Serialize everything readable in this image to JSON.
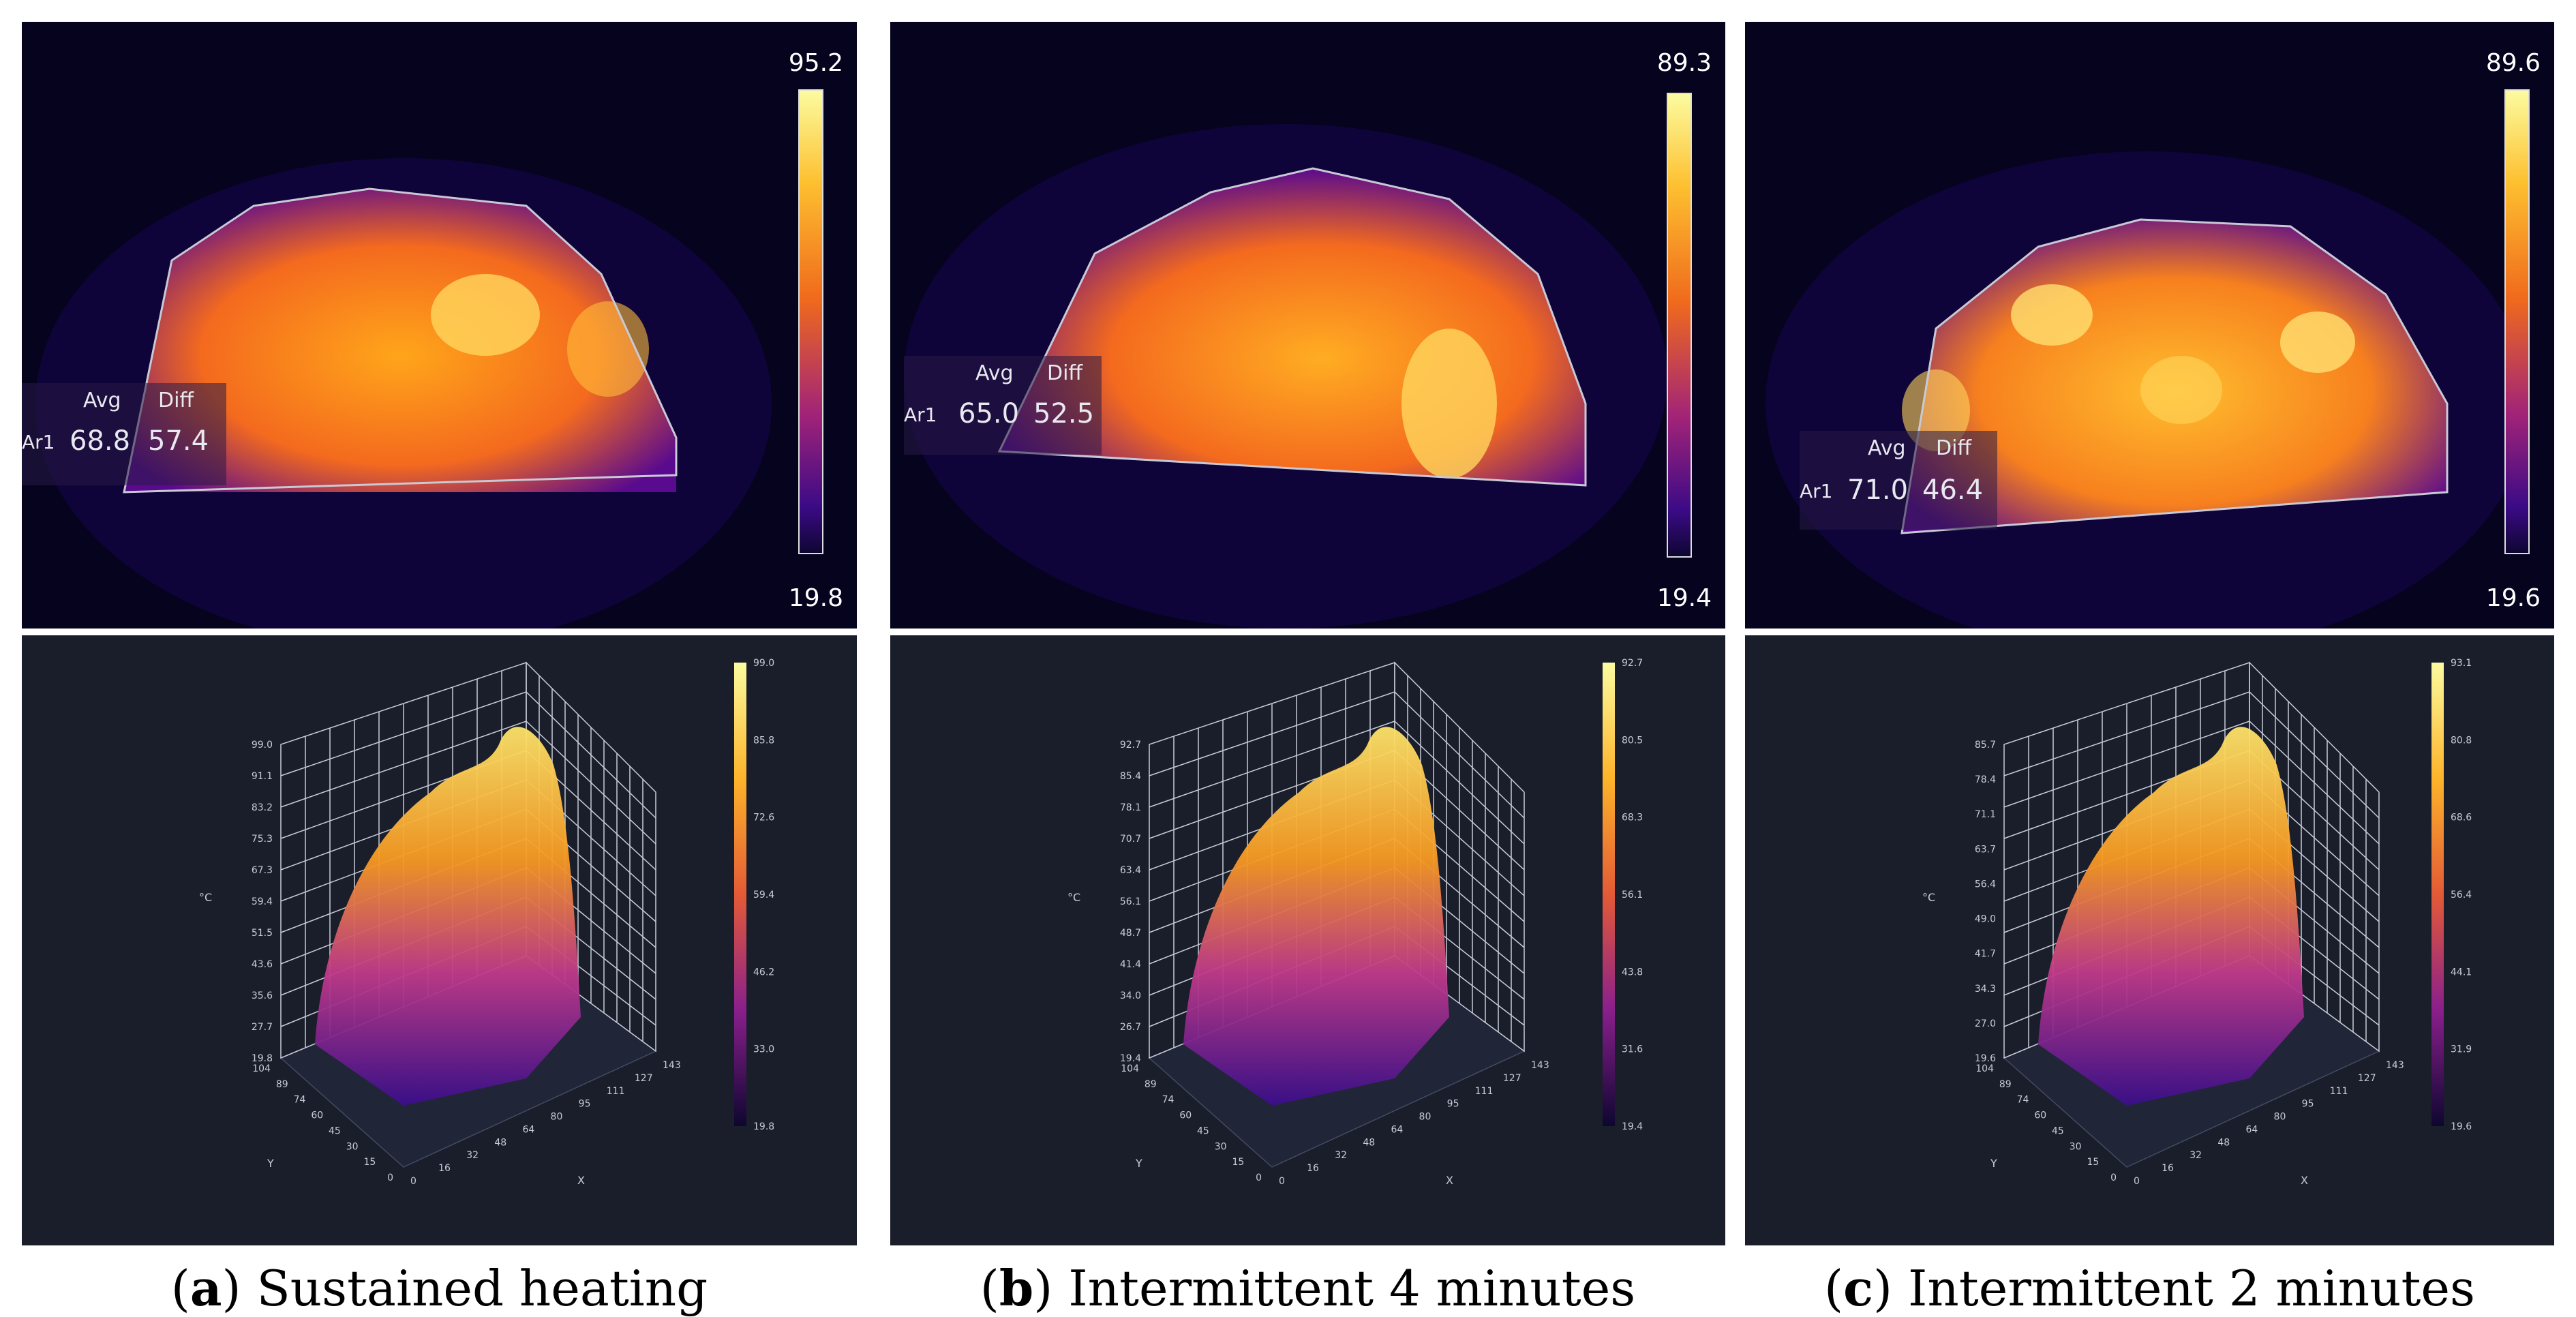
{
  "panels": [
    {
      "id": "a",
      "thermal": {
        "scale_max": "95.2",
        "scale_min": "19.8",
        "roi": "Ar1",
        "avg_label": "Avg",
        "diff_label": "Diff",
        "avg": "68.8",
        "diff": "57.4"
      },
      "plot": {
        "z_ticks": [
          "99.0",
          "91.1",
          "83.2",
          "75.3",
          "67.3",
          "59.4",
          "51.5",
          "43.6",
          "35.6",
          "27.7",
          "19.8"
        ],
        "cbar_ticks": [
          "99.0",
          "85.8",
          "72.6",
          "59.4",
          "46.2",
          "33.0",
          "19.8"
        ]
      },
      "caption_letter": "a",
      "caption_text": ") Sustained heating"
    },
    {
      "id": "b",
      "thermal": {
        "scale_max": "89.3",
        "scale_min": "19.4",
        "roi": "Ar1",
        "avg_label": "Avg",
        "diff_label": "Diff",
        "avg": "65.0",
        "diff": "52.5"
      },
      "plot": {
        "z_ticks": [
          "92.7",
          "85.4",
          "78.1",
          "70.7",
          "63.4",
          "56.1",
          "48.7",
          "41.4",
          "34.0",
          "26.7",
          "19.4"
        ],
        "cbar_ticks": [
          "92.7",
          "80.5",
          "68.3",
          "56.1",
          "43.8",
          "31.6",
          "19.4"
        ]
      },
      "caption_letter": "b",
      "caption_text": ") Intermittent 4 minutes"
    },
    {
      "id": "c",
      "thermal": {
        "scale_max": "89.6",
        "scale_min": "19.6",
        "roi": "Ar1",
        "avg_label": "Avg",
        "diff_label": "Diff",
        "avg": "71.0",
        "diff": "46.4"
      },
      "plot": {
        "z_ticks": [
          "85.7",
          "78.4",
          "71.1",
          "63.7",
          "56.4",
          "49.0",
          "41.7",
          "34.3",
          "27.0",
          "19.6"
        ],
        "cbar_ticks": [
          "93.1",
          "80.8",
          "68.6",
          "56.4",
          "44.1",
          "31.9",
          "19.6"
        ]
      },
      "caption_letter": "c",
      "caption_text": ") Intermittent 2 minutes"
    }
  ],
  "axes": {
    "x_ticks": [
      "0",
      "16",
      "32",
      "48",
      "64",
      "80",
      "95",
      "111",
      "127",
      "143"
    ],
    "y_ticks": [
      "104",
      "89",
      "74",
      "60",
      "45",
      "30",
      "15",
      "0"
    ],
    "x_label": "X",
    "y_label": "Y",
    "z_label": "°C"
  },
  "colors": {
    "thermal_bg": "#06031f",
    "plot_bg": "#1a1e2b"
  }
}
